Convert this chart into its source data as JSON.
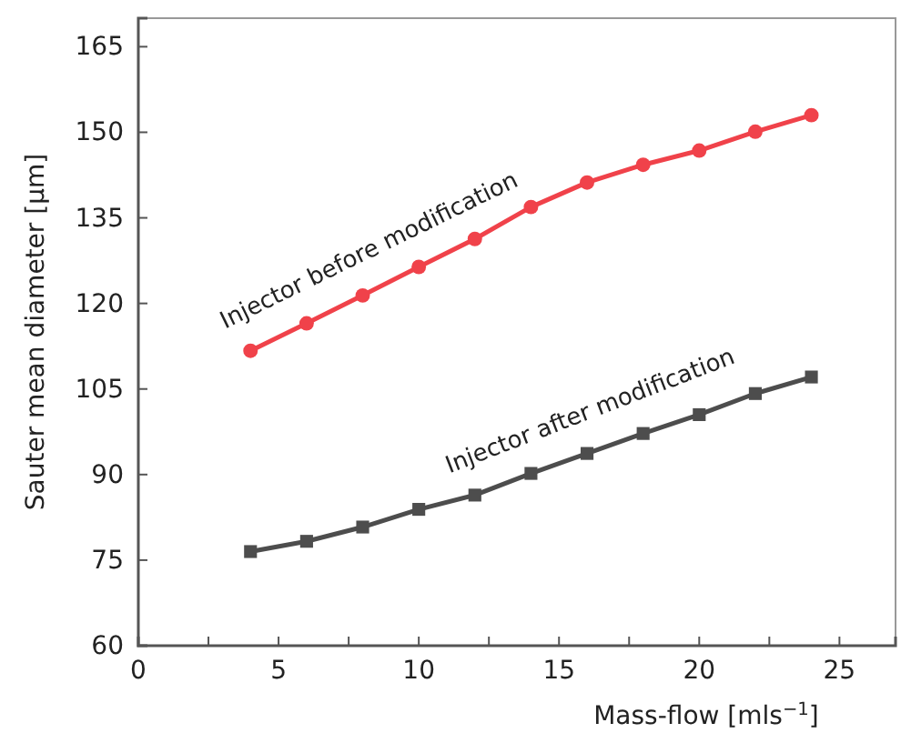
{
  "chart_data": {
    "type": "line",
    "xlabel": "Mass-flow [mls$^{−1}$]",
    "ylabel": "Sauter mean diameter [µm]",
    "xlim": [
      0,
      27
    ],
    "xticks": [
      0,
      {
        "value": 2.5,
        "label": null
      },
      5,
      {
        "value": 7.5,
        "label": null
      },
      10,
      {
        "value": 12.5,
        "label": null
      },
      15,
      {
        "value": 17.5,
        "label": null
      },
      20,
      {
        "value": 22.5,
        "label": null
      },
      25
    ],
    "ylim": [
      60,
      170
    ],
    "yticks": [
      60,
      75,
      90,
      105,
      120,
      135,
      150,
      165
    ],
    "x": [
      4,
      6,
      8,
      10,
      12,
      14,
      16,
      18,
      20,
      22,
      24
    ],
    "series": [
      {
        "name": "Injector before modification",
        "color": "#f0424a",
        "marker": "circle",
        "values": [
          111.7,
          116.5,
          121.4,
          126.4,
          131.3,
          136.9,
          141.2,
          144.3,
          146.8,
          150.1,
          153.0
        ]
      },
      {
        "name": "Injector after modification",
        "color": "#4d4d4d",
        "marker": "square",
        "values": [
          76.5,
          78.3,
          80.8,
          83.9,
          86.4,
          90.2,
          93.7,
          97.2,
          100.5,
          104.2,
          107.1
        ]
      }
    ],
    "grid": false
  }
}
